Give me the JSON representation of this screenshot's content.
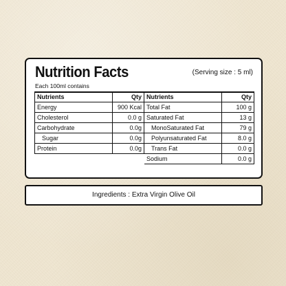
{
  "label": {
    "title": "Nutrition Facts",
    "serving": "(Serving size : 5 ml)",
    "subtitle": "Each 100ml contains",
    "left_table": {
      "headers": [
        "Nutrients",
        "Qty"
      ],
      "rows": [
        {
          "name": "Energy",
          "qty": "900 Kcal"
        },
        {
          "name": "Cholesterol",
          "qty": "0.0 g"
        },
        {
          "name": "Carbohydrate",
          "qty": "0.0g"
        },
        {
          "name": "Sugar",
          "qty": "0.0g"
        },
        {
          "name": "Protein",
          "qty": "0.0g"
        }
      ]
    },
    "right_table": {
      "headers": [
        "Nutrients",
        "Qty"
      ],
      "rows": [
        {
          "name": "Total Fat",
          "qty": "100 g"
        },
        {
          "name": "Saturated Fat",
          "qty": "13  g"
        },
        {
          "name": "MonoSaturated Fat",
          "qty": "79 g"
        },
        {
          "name": "Polyunsaturated Fat",
          "qty": "8.0 g"
        },
        {
          "name": "Trans Fat",
          "qty": "0.0 g"
        },
        {
          "name": "Sodium",
          "qty": "0.0 g"
        }
      ]
    }
  },
  "ingredients": {
    "text": "Ingredients : Extra Virgin Olive Oil"
  }
}
